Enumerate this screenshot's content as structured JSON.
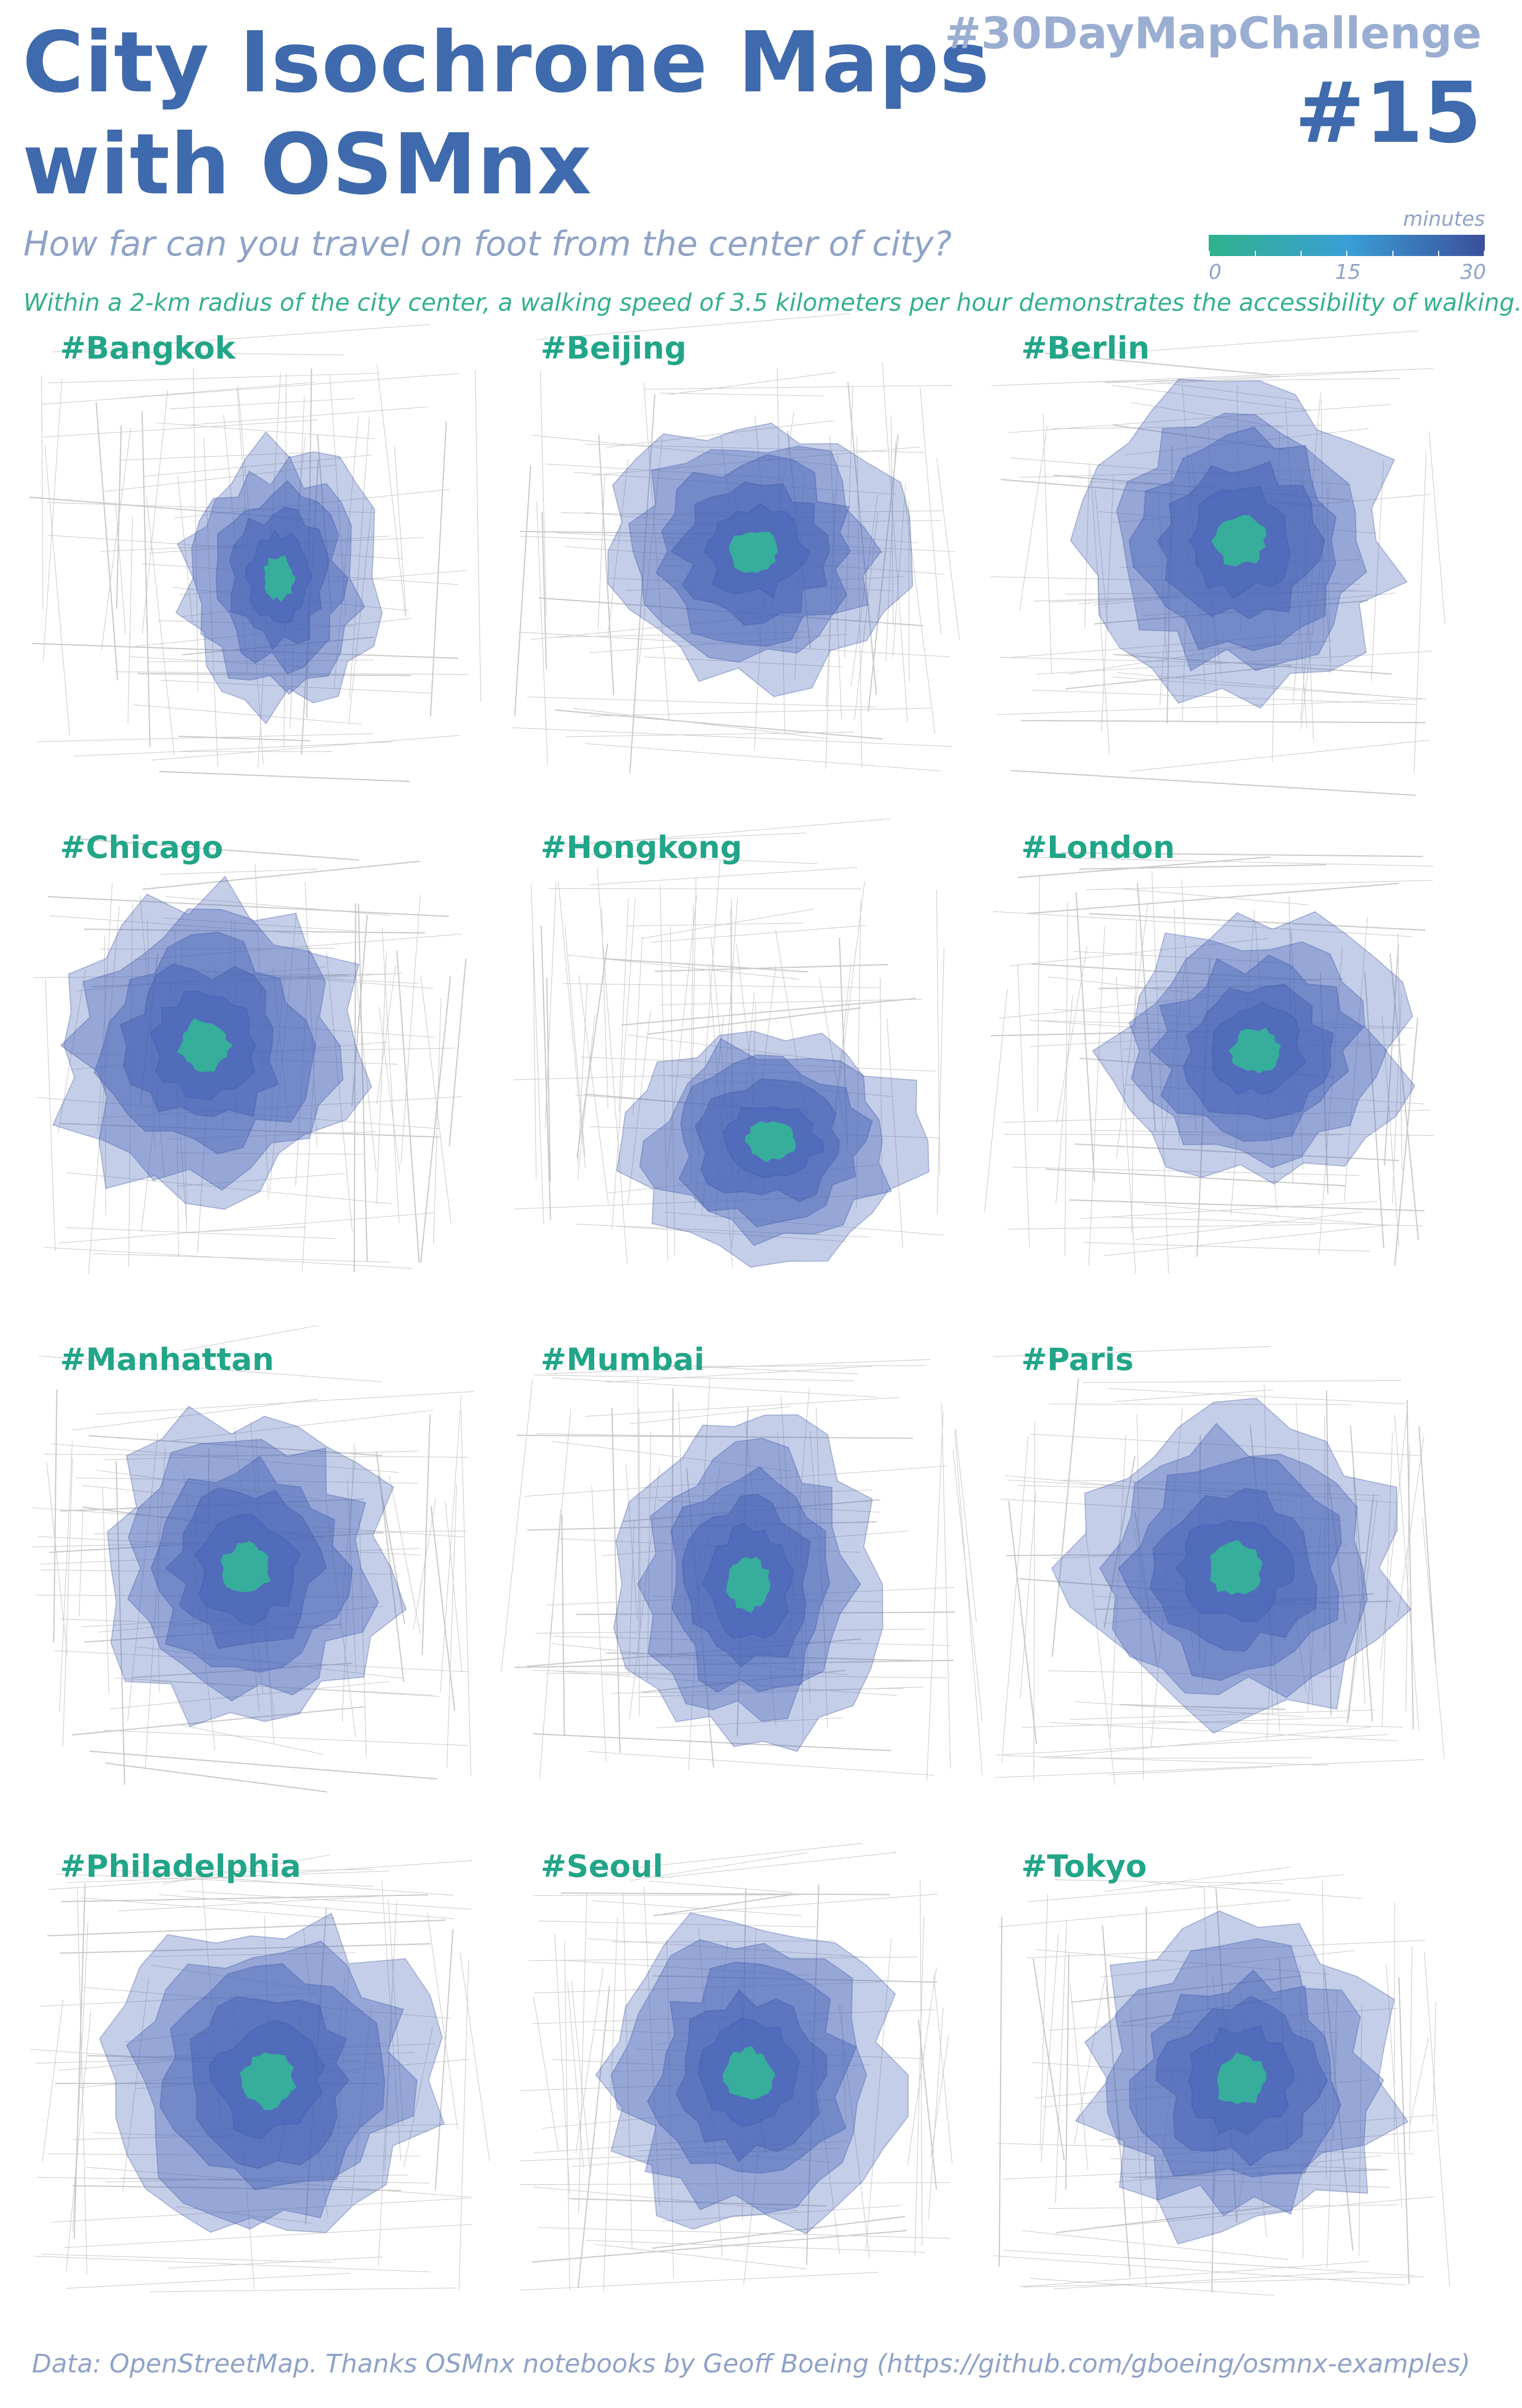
{
  "header": {
    "title_line_1": "City Isochrone Maps",
    "title_line_2": "with OSMnx",
    "hashtag": "#30DayMapChallenge",
    "day_number": "#15",
    "subtitle": "How far can you travel on foot from the center of city?",
    "description": "Within a 2-km radius of the city center, a walking speed of 3.5 kilometers per hour demonstrates the accessibility of walking."
  },
  "legend": {
    "title": "minutes",
    "min_label": "0",
    "mid_label": "15",
    "max_label": "30",
    "min_value": 0,
    "max_value": 30,
    "color_start": "#2fb28c",
    "color_mid": "#3a9fd6",
    "color_end": "#3b4f9c"
  },
  "colors": {
    "title": "#3f6aad",
    "accent_green": "#22a589",
    "isochrone_fill": "#4a66b8",
    "isochrone_center": "#2fbf94",
    "street_lines": "#c9c9c9"
  },
  "cities": [
    {
      "label": "#Bangkok"
    },
    {
      "label": "#Beijing"
    },
    {
      "label": "#Berlin"
    },
    {
      "label": "#Chicago"
    },
    {
      "label": "#Hongkong"
    },
    {
      "label": "#London"
    },
    {
      "label": "#Manhattan"
    },
    {
      "label": "#Mumbai"
    },
    {
      "label": "#Paris"
    },
    {
      "label": "#Philadelphia"
    },
    {
      "label": "#Seoul"
    },
    {
      "label": "#Tokyo"
    }
  ],
  "footer": "Data: OpenStreetMap. Thanks OSMnx notebooks by Geoff Boeing (https://github.com/gboeing/osmnx-examples)"
}
